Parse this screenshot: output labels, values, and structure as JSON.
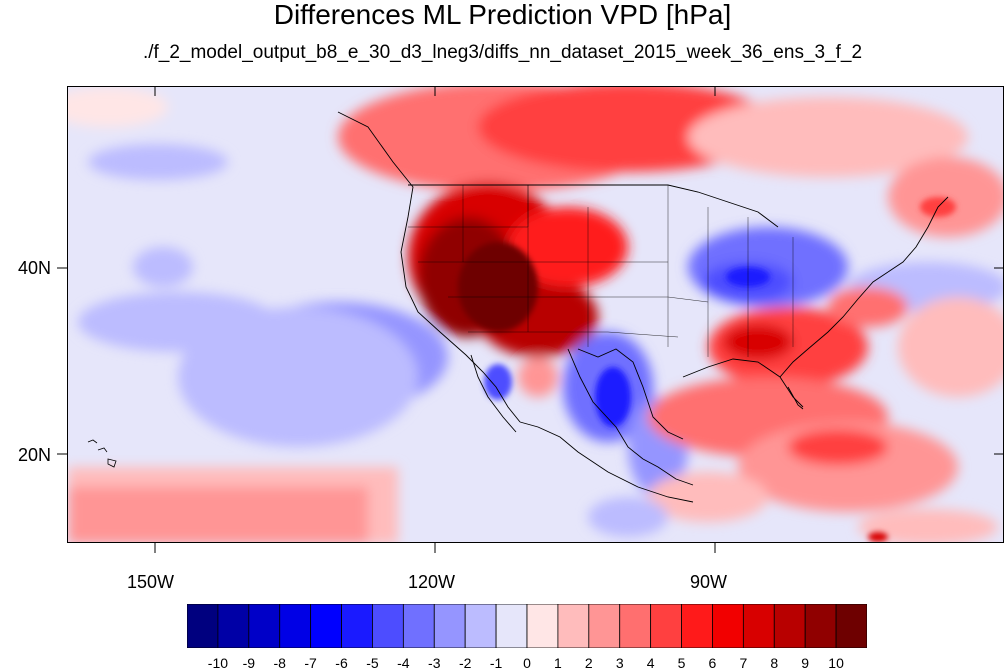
{
  "title": "Differences ML Prediction VPD [hPa]",
  "subtitle": "./f_2_model_output_b8_e_30_d3_lneg3/diffs_nn_dataset_2015_week_36_ens_3_f_2",
  "map": {
    "lat_labels": [
      "40N",
      "20N"
    ],
    "lon_labels": [
      "150W",
      "120W",
      "90W"
    ]
  },
  "colorbar": {
    "labels": [
      "-10",
      "-9",
      "-8",
      "-7",
      "-6",
      "-5",
      "-4",
      "-3",
      "-2",
      "-1",
      "0",
      "1",
      "2",
      "3",
      "4",
      "5",
      "6",
      "7",
      "8",
      "9",
      "10"
    ],
    "colors": [
      "#00007f",
      "#0000a6",
      "#0000c8",
      "#0000e6",
      "#0000ff",
      "#1a1aff",
      "#4d4dff",
      "#7070ff",
      "#9595ff",
      "#bcbcff",
      "#e6e6fa",
      "#ffe6e6",
      "#ffbcbc",
      "#ff9595",
      "#ff6f6f",
      "#ff4040",
      "#ff1a1a",
      "#f20000",
      "#d80000",
      "#b80000",
      "#900000",
      "#6e0000"
    ]
  }
}
